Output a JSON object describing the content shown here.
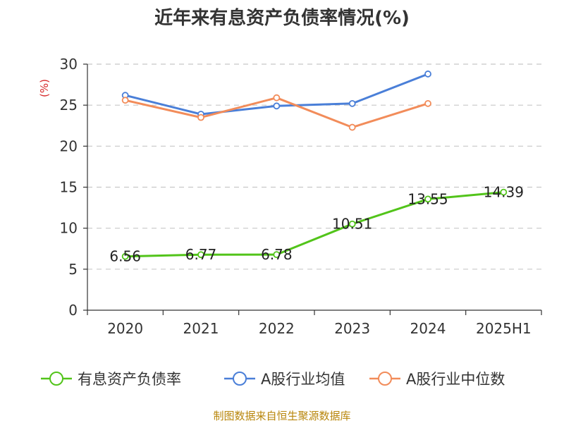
{
  "chart_data": {
    "type": "line",
    "title": "近年来有息资产负债率情况(%)",
    "ylabel": "(%)",
    "categories": [
      "2020",
      "2021",
      "2022",
      "2023",
      "2024",
      "2025H1"
    ],
    "ylim": [
      0,
      30
    ],
    "yticks": [
      0,
      5,
      10,
      15,
      20,
      25,
      30
    ],
    "grid": "horizontal dashed",
    "legend_position": "bottom",
    "series": [
      {
        "name": "有息资产负债率",
        "color": "#52c41a",
        "values": [
          6.56,
          6.77,
          6.78,
          10.51,
          13.55,
          14.39
        ],
        "labels": [
          "6.56",
          "6.77",
          "6.78",
          "10.51",
          "13.55",
          "14.39"
        ]
      },
      {
        "name": "A股行业均值",
        "color": "#4a7fd8",
        "values": [
          26.2,
          23.9,
          24.9,
          25.2,
          28.8,
          null
        ]
      },
      {
        "name": "A股行业中位数",
        "color": "#f28c5a",
        "values": [
          25.6,
          23.5,
          25.9,
          22.3,
          25.2,
          null
        ]
      }
    ]
  },
  "source": "制图数据来自恒生聚源数据库"
}
